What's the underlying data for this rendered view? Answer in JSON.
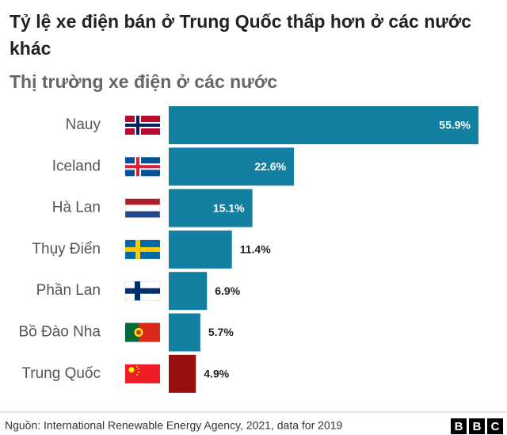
{
  "chart_data": {
    "type": "bar",
    "orientation": "horizontal",
    "title": "Tỷ lệ xe điện bán ở Trung Quốc thấp hơn ở các nước khác",
    "subtitle": "Thị trường xe điện ở các nước",
    "categories": [
      "Nauy",
      "Iceland",
      "Hà Lan",
      "Thụy Điển",
      "Phần Lan",
      "Bồ Đào Nha",
      "Trung Quốc"
    ],
    "values": [
      55.9,
      22.6,
      15.1,
      11.4,
      6.9,
      5.7,
      4.9
    ],
    "value_labels": [
      "55.9%",
      "22.6%",
      "15.1%",
      "11.4%",
      "6.9%",
      "5.7%",
      "4.9%"
    ],
    "colors": [
      "#1380a1",
      "#1380a1",
      "#1380a1",
      "#1380a1",
      "#1380a1",
      "#1380a1",
      "#990f0f"
    ],
    "source": "Nguồn: International Renewable Energy Agency, 2021, data for 2019",
    "logo": [
      "B",
      "B",
      "C"
    ]
  }
}
